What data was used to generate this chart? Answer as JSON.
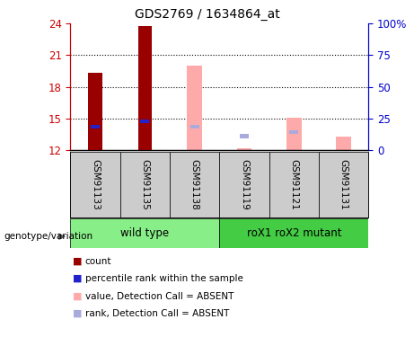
{
  "title": "GDS2769 / 1634864_at",
  "samples": [
    "GSM91133",
    "GSM91135",
    "GSM91138",
    "GSM91119",
    "GSM91121",
    "GSM91131"
  ],
  "ylim": [
    12,
    24
  ],
  "yticks": [
    12,
    15,
    18,
    21,
    24
  ],
  "y2ticks": [
    0,
    25,
    50,
    75,
    100
  ],
  "y2lim": [
    0,
    100
  ],
  "count_color": "#990000",
  "rank_color": "#2222cc",
  "absent_value_color": "#ffaaaa",
  "absent_rank_color": "#aaaadd",
  "group1_color": "#88ee88",
  "group2_color": "#44cc44",
  "sample_box_color": "#cccccc",
  "count_bars": {
    "GSM91133": 19.3,
    "GSM91135": 23.8,
    "GSM91138": null,
    "GSM91119": null,
    "GSM91121": null,
    "GSM91131": null
  },
  "rank_bars": {
    "GSM91133": 14.2,
    "GSM91135": 14.7,
    "GSM91138": null,
    "GSM91119": null,
    "GSM91121": null,
    "GSM91131": null
  },
  "absent_value_bars": {
    "GSM91133": null,
    "GSM91135": null,
    "GSM91138": 20.0,
    "GSM91119": 12.2,
    "GSM91121": 15.1,
    "GSM91131": 13.3
  },
  "absent_rank_bars": {
    "GSM91133": null,
    "GSM91135": null,
    "GSM91138": 14.2,
    "GSM91119": 13.3,
    "GSM91121": 13.7,
    "GSM91131": null
  },
  "legend_items": [
    {
      "color": "#990000",
      "label": "count"
    },
    {
      "color": "#2222cc",
      "label": "percentile rank within the sample"
    },
    {
      "color": "#ffaaaa",
      "label": "value, Detection Call = ABSENT"
    },
    {
      "color": "#aaaadd",
      "label": "rank, Detection Call = ABSENT"
    }
  ],
  "ax_left_color": "#cc0000",
  "ax_right_color": "#0000cc",
  "genotype_label": "genotype/variation",
  "group_labels": [
    "wild type",
    "roX1 roX2 mutant"
  ],
  "group_ranges": [
    [
      1,
      3
    ],
    [
      4,
      6
    ]
  ]
}
